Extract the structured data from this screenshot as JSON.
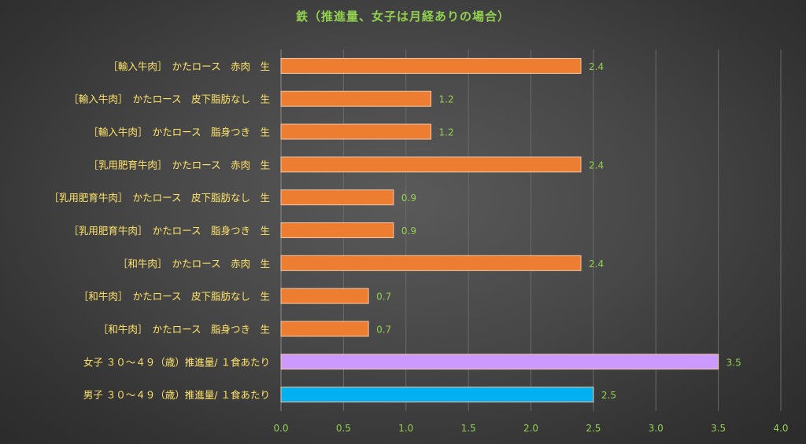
{
  "chart_data": {
    "type": "bar",
    "orientation": "horizontal",
    "title": "鉄（推進量、女子は月経ありの場合）",
    "xlabel": "",
    "ylabel": "",
    "xlim": [
      0,
      4.0
    ],
    "x_ticks": [
      "0.0",
      "0.5",
      "1.0",
      "1.5",
      "2.0",
      "2.5",
      "3.0",
      "3.5",
      "4.0"
    ],
    "grid": true,
    "legend": "none",
    "categories": [
      "［輸入牛肉］　かたロース　赤肉　生",
      "［輸入牛肉］　かたロース　皮下脂肪なし　生",
      "［輸入牛肉］　かたロース　脂身つき　生",
      "［乳用肥育牛肉］　かたロース　赤肉　生",
      "［乳用肥育牛肉］　かたロース　皮下脂肪なし　生",
      "［乳用肥育牛肉］　かたロース　脂身つき　生",
      "［和牛肉］　かたロース　赤肉　生",
      "［和牛肉］　かたロース　皮下脂肪なし　生",
      "［和牛肉］　かたロース　脂身つき　生",
      "女子 ３０～４９（歳）推進量/ １食あたり",
      "男子 ３０～４９（歳）推進量/ １食あたり"
    ],
    "values": [
      2.4,
      1.2,
      1.2,
      2.4,
      0.9,
      0.9,
      2.4,
      0.7,
      0.7,
      3.5,
      2.5
    ],
    "value_labels": [
      "2.4",
      "1.2",
      "1.2",
      "2.4",
      "0.9",
      "0.9",
      "2.4",
      "0.7",
      "0.7",
      "3.5",
      "2.5"
    ],
    "bar_colors": [
      "#ed7d31",
      "#ed7d31",
      "#ed7d31",
      "#ed7d31",
      "#ed7d31",
      "#ed7d31",
      "#ed7d31",
      "#ed7d31",
      "#ed7d31",
      "#cc99ff",
      "#00b0f0"
    ],
    "colors": {
      "title": "#92d050",
      "category_labels": "#ffe36a",
      "value_labels": "#92d050",
      "tick_labels": "#92d050",
      "grid": "#6a6a6a"
    }
  }
}
